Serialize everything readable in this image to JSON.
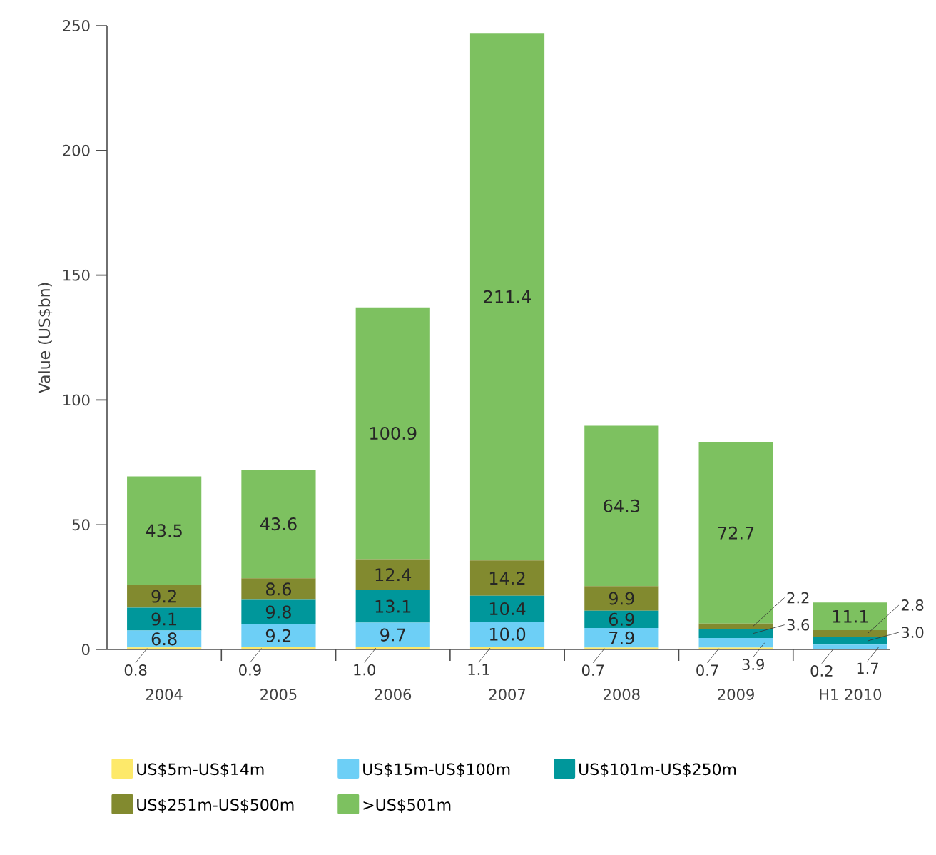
{
  "chart_data": {
    "type": "bar",
    "stacked": true,
    "ylabel": "Value (US$bn)",
    "categories": [
      "2004",
      "2005",
      "2006",
      "2007",
      "2008",
      "2009",
      "H1 2010"
    ],
    "series": [
      {
        "name": "US$5m-US$14m",
        "color": "#fde96a",
        "values": [
          0.8,
          0.9,
          1.0,
          1.1,
          0.7,
          0.7,
          0.2
        ],
        "value_labels": [
          "0.8",
          "0.9",
          "1.0",
          "1.1",
          "0.7",
          "0.7",
          "0.2"
        ]
      },
      {
        "name": "US$15m-US$100m",
        "color": "#6dcff6",
        "values": [
          6.8,
          9.2,
          9.7,
          10.0,
          7.9,
          3.9,
          1.7
        ],
        "value_labels": [
          "6.8",
          "9.2",
          "9.7",
          "10.0",
          "7.9",
          "3.9",
          "1.7"
        ]
      },
      {
        "name": "US$101m-US$250m",
        "color": "#00979b",
        "values": [
          9.1,
          9.8,
          13.1,
          10.4,
          6.9,
          3.6,
          3.0
        ],
        "value_labels": [
          "9.1",
          "9.8",
          "13.1",
          "10.4",
          "6.9",
          "3.6",
          "3.0"
        ]
      },
      {
        "name": "US$251m-US$500m",
        "color": "#828a2f",
        "values": [
          9.2,
          8.6,
          12.4,
          14.2,
          9.9,
          2.2,
          2.8
        ],
        "value_labels": [
          "9.2",
          "8.6",
          "12.4",
          "14.2",
          "9.9",
          "2.2",
          "2.8"
        ]
      },
      {
        "name": ">US$501m",
        "color": "#7dc160",
        "values": [
          43.5,
          43.6,
          100.9,
          211.4,
          64.3,
          72.7,
          11.1
        ],
        "value_labels": [
          "43.5",
          "43.6",
          "100.9",
          "211.4",
          "64.3",
          "72.7",
          "11.1"
        ]
      }
    ],
    "ylim": [
      0,
      250
    ],
    "yticks": [
      0,
      50,
      100,
      150,
      200,
      250
    ],
    "grid": false,
    "legend": "bottom",
    "data_labels": true
  }
}
